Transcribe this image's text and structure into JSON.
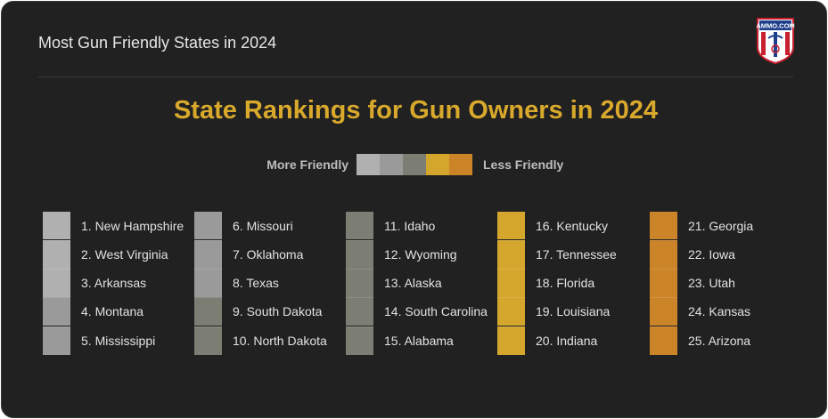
{
  "header": {
    "title": "Most Gun Friendly States in 2024",
    "logo_text": "AMMO.COM"
  },
  "chart_data": {
    "type": "table",
    "title": "State Rankings for Gun Owners in 2024",
    "legend": {
      "left_label": "More Friendly",
      "right_label": "Less Friendly",
      "colors": [
        "#b0b0b0",
        "#9a9a9a",
        "#7d7e73",
        "#d4a72c",
        "#cc8428"
      ]
    },
    "rankings": [
      {
        "rank": 1,
        "label": "1. New Hampshire",
        "tier": 0
      },
      {
        "rank": 2,
        "label": "2. West Virginia",
        "tier": 0
      },
      {
        "rank": 3,
        "label": "3. Arkansas",
        "tier": 0
      },
      {
        "rank": 4,
        "label": "4. Montana",
        "tier": 1
      },
      {
        "rank": 5,
        "label": "5. Mississippi",
        "tier": 1
      },
      {
        "rank": 6,
        "label": "6. Missouri",
        "tier": 1
      },
      {
        "rank": 7,
        "label": "7. Oklahoma",
        "tier": 1
      },
      {
        "rank": 8,
        "label": "8. Texas",
        "tier": 1
      },
      {
        "rank": 9,
        "label": "9. South Dakota",
        "tier": 2
      },
      {
        "rank": 10,
        "label": "10. North Dakota",
        "tier": 2
      },
      {
        "rank": 11,
        "label": "11. Idaho",
        "tier": 2
      },
      {
        "rank": 12,
        "label": "12. Wyoming",
        "tier": 2
      },
      {
        "rank": 13,
        "label": "13. Alaska",
        "tier": 2
      },
      {
        "rank": 14,
        "label": "14. South Carolina",
        "tier": 2
      },
      {
        "rank": 15,
        "label": "15. Alabama",
        "tier": 2
      },
      {
        "rank": 16,
        "label": "16. Kentucky",
        "tier": 3
      },
      {
        "rank": 17,
        "label": "17. Tennessee",
        "tier": 3
      },
      {
        "rank": 18,
        "label": "18. Florida",
        "tier": 3
      },
      {
        "rank": 19,
        "label": "19. Louisiana",
        "tier": 3
      },
      {
        "rank": 20,
        "label": "20. Indiana",
        "tier": 3
      },
      {
        "rank": 21,
        "label": "21. Georgia",
        "tier": 4
      },
      {
        "rank": 22,
        "label": "22. Iowa",
        "tier": 4
      },
      {
        "rank": 23,
        "label": "23. Utah",
        "tier": 4
      },
      {
        "rank": 24,
        "label": "24. Kansas",
        "tier": 4
      },
      {
        "rank": 25,
        "label": "25. Arizona",
        "tier": 4
      }
    ]
  }
}
